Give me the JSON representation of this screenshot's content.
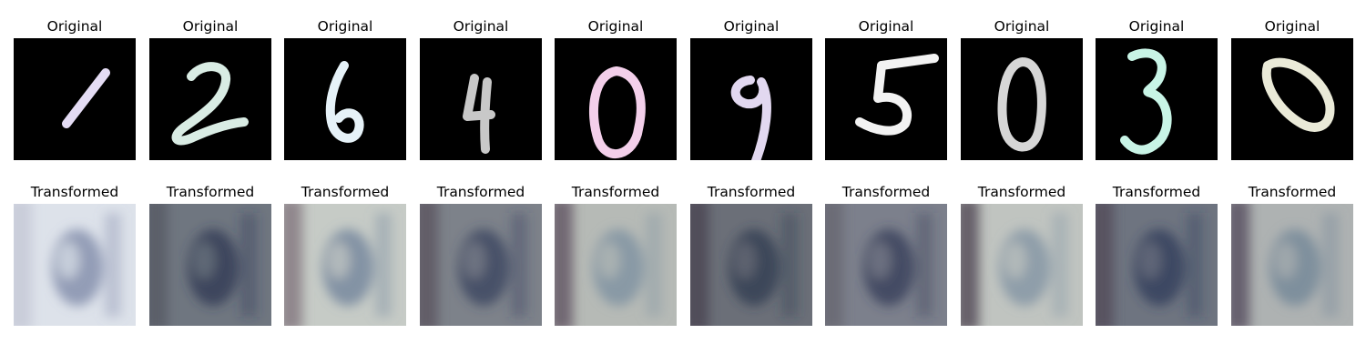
{
  "figure": {
    "row_titles": {
      "top": "Original",
      "bottom": "Transformed"
    },
    "originals": [
      {
        "digit": "1",
        "color": "#e4dcf4"
      },
      {
        "digit": "2",
        "color": "#d9ece4"
      },
      {
        "digit": "6",
        "color": "#e6f2f8"
      },
      {
        "digit": "4",
        "color": "#c8c8c8"
      },
      {
        "digit": "0",
        "color": "#f3cfea"
      },
      {
        "digit": "9",
        "color": "#e2d8f0"
      },
      {
        "digit": "5",
        "color": "#f2f2f2"
      },
      {
        "digit": "0",
        "color": "#d6d6d6"
      },
      {
        "digit": "3",
        "color": "#c8f4e6"
      },
      {
        "digit": "0",
        "color": "#eaead8"
      }
    ],
    "transformed": [
      {
        "bg": "#dde2ea",
        "fg": "#7a86a6",
        "edge": "#c8cbd8"
      },
      {
        "bg": "#6f7680",
        "fg": "#2c3552",
        "edge": "#5a5c66"
      },
      {
        "bg": "#c6cbc6",
        "fg": "#6d809a",
        "edge": "#8a7f86"
      },
      {
        "bg": "#7d828a",
        "fg": "#36405e",
        "edge": "#5e5a64"
      },
      {
        "bg": "#b6bab6",
        "fg": "#7a8fa0",
        "edge": "#6a5e6c"
      },
      {
        "bg": "#6b6f78",
        "fg": "#2e3a50",
        "edge": "#4e4854"
      },
      {
        "bg": "#7c808c",
        "fg": "#323a56",
        "edge": "#6a6a74"
      },
      {
        "bg": "#c0c4c0",
        "fg": "#7e92a2",
        "edge": "#5c5460"
      },
      {
        "bg": "#6e7480",
        "fg": "#2c3a5a",
        "edge": "#54505c"
      },
      {
        "bg": "#aeb2b2",
        "fg": "#6f8496",
        "edge": "#5e5866"
      }
    ]
  }
}
